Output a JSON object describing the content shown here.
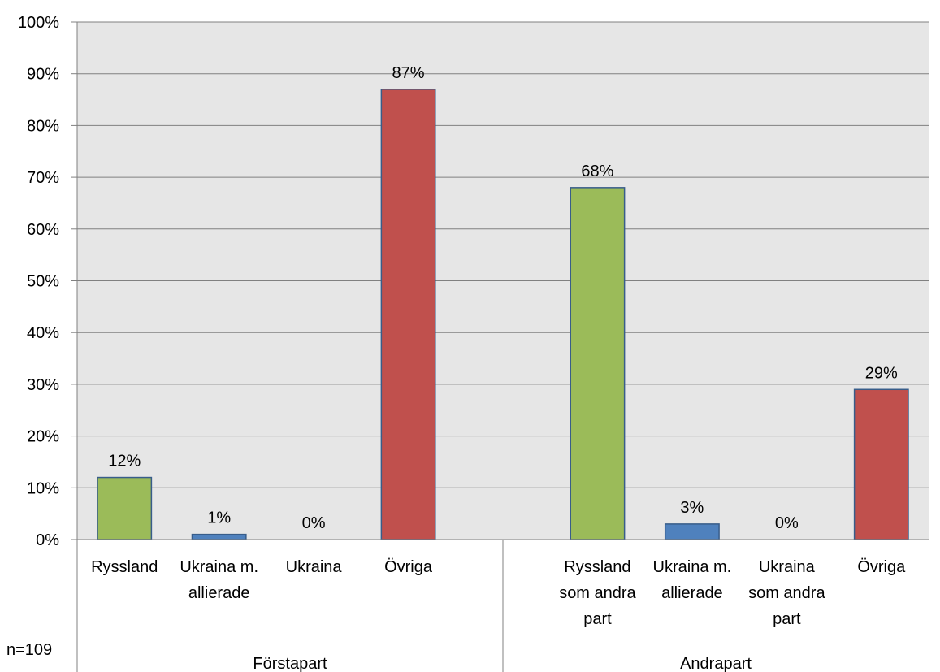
{
  "note": "n=109",
  "colors": {
    "green": "#9BBB59",
    "blue": "#4F81BD",
    "red": "#C0504D",
    "plot_bg": "#E6E6E6",
    "grid": "#808080"
  },
  "chart_data": {
    "type": "bar",
    "title": "",
    "xlabel": "",
    "ylabel": "",
    "ylim": [
      0,
      100
    ],
    "yticks": [
      "0%",
      "10%",
      "20%",
      "30%",
      "40%",
      "50%",
      "60%",
      "70%",
      "80%",
      "90%",
      "100%"
    ],
    "grid": true,
    "groups": [
      {
        "name": "Förstapart",
        "bars": [
          {
            "label": [
              "Ryssland"
            ],
            "value": 12,
            "value_label": "12%",
            "color": "#9BBB59"
          },
          {
            "label": [
              "Ukraina m.",
              "allierade"
            ],
            "value": 1,
            "value_label": "1%",
            "color": "#4F81BD"
          },
          {
            "label": [
              "Ukraina"
            ],
            "value": 0,
            "value_label": "0%",
            "color": "#4F81BD"
          },
          {
            "label": [
              "Övriga"
            ],
            "value": 87,
            "value_label": "87%",
            "color": "#C0504D"
          }
        ]
      },
      {
        "name": "Andrapart",
        "bars": [
          {
            "label": [
              "Ryssland",
              "som andra",
              "part"
            ],
            "value": 68,
            "value_label": "68%",
            "color": "#9BBB59"
          },
          {
            "label": [
              "Ukraina m.",
              "allierade"
            ],
            "value": 3,
            "value_label": "3%",
            "color": "#4F81BD"
          },
          {
            "label": [
              "Ukraina",
              "som andra",
              "part"
            ],
            "value": 0,
            "value_label": "0%",
            "color": "#4F81BD"
          },
          {
            "label": [
              "Övriga"
            ],
            "value": 29,
            "value_label": "29%",
            "color": "#C0504D"
          }
        ]
      }
    ]
  }
}
